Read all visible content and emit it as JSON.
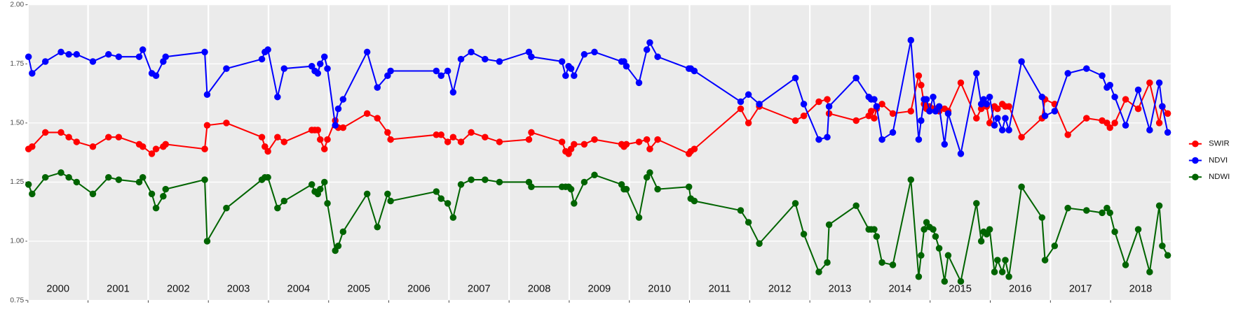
{
  "chart_data": {
    "type": "line",
    "x": [
      2000.01,
      2000.07,
      2000.29,
      2000.55,
      2000.68,
      2000.81,
      2001.08,
      2001.34,
      2001.51,
      2001.85,
      2001.91,
      2002.06,
      2002.13,
      2002.25,
      2002.29,
      2002.94,
      2002.98,
      2003.3,
      2003.89,
      2003.94,
      2003.99,
      2004.15,
      2004.26,
      2004.72,
      2004.77,
      2004.82,
      2004.86,
      2004.93,
      2004.98,
      2005.11,
      2005.16,
      2005.24,
      2005.64,
      2005.81,
      2005.98,
      2006.03,
      2006.79,
      2006.87,
      2006.98,
      2007.07,
      2007.2,
      2007.37,
      2007.6,
      2007.84,
      2008.33,
      2008.37,
      2008.88,
      2008.94,
      2008.99,
      2009.03,
      2009.08,
      2009.25,
      2009.42,
      2009.87,
      2009.91,
      2009.95,
      2010.16,
      2010.29,
      2010.34,
      2010.47,
      2010.99,
      2011.02,
      2011.08,
      2011.85,
      2011.98,
      2012.16,
      2012.76,
      2012.9,
      2013.15,
      2013.29,
      2013.32,
      2013.77,
      2013.98,
      2014.02,
      2014.07,
      2014.11,
      2014.2,
      2014.38,
      2014.68,
      2014.81,
      2014.85,
      2014.9,
      2014.94,
      2014.99,
      2015.05,
      2015.09,
      2015.15,
      2015.24,
      2015.3,
      2015.51,
      2015.77,
      2015.85,
      2015.89,
      2015.94,
      2015.99,
      2016.07,
      2016.12,
      2016.2,
      2016.25,
      2016.31,
      2016.52,
      2016.86,
      2016.91,
      2017.07,
      2017.29,
      2017.6,
      2017.86,
      2017.94,
      2017.99,
      2018.07,
      2018.25,
      2018.46,
      2018.65,
      2018.81,
      2018.86,
      2018.95
    ],
    "series": [
      {
        "name": "SWIR",
        "color": "#ff0000",
        "values": [
          1.39,
          1.4,
          1.46,
          1.46,
          1.44,
          1.42,
          1.4,
          1.44,
          1.44,
          1.41,
          1.4,
          1.37,
          1.39,
          1.4,
          1.41,
          1.39,
          1.49,
          1.5,
          1.44,
          1.4,
          1.38,
          1.44,
          1.42,
          1.47,
          1.47,
          1.47,
          1.43,
          1.39,
          1.43,
          1.51,
          1.48,
          1.48,
          1.54,
          1.52,
          1.46,
          1.43,
          1.45,
          1.45,
          1.42,
          1.44,
          1.42,
          1.46,
          1.44,
          1.42,
          1.43,
          1.46,
          1.42,
          1.38,
          1.37,
          1.39,
          1.41,
          1.41,
          1.43,
          1.41,
          1.4,
          1.41,
          1.42,
          1.43,
          1.39,
          1.43,
          1.37,
          1.38,
          1.39,
          1.56,
          1.5,
          1.57,
          1.51,
          1.53,
          1.59,
          1.6,
          1.54,
          1.51,
          1.53,
          1.55,
          1.52,
          1.56,
          1.58,
          1.54,
          1.55,
          1.7,
          1.66,
          1.58,
          1.56,
          1.57,
          1.56,
          1.56,
          1.55,
          1.56,
          1.55,
          1.67,
          1.52,
          1.56,
          1.59,
          1.57,
          1.5,
          1.57,
          1.56,
          1.58,
          1.57,
          1.57,
          1.44,
          1.52,
          1.6,
          1.58,
          1.45,
          1.52,
          1.51,
          1.5,
          1.48,
          1.5,
          1.6,
          1.56,
          1.67,
          1.5,
          1.57,
          1.54
        ]
      },
      {
        "name": "NDVI",
        "color": "#0000ff",
        "values": [
          1.78,
          1.71,
          1.76,
          1.8,
          1.79,
          1.79,
          1.76,
          1.79,
          1.78,
          1.78,
          1.81,
          1.71,
          1.7,
          1.76,
          1.78,
          1.8,
          1.62,
          1.73,
          1.77,
          1.8,
          1.81,
          1.61,
          1.73,
          1.74,
          1.72,
          1.71,
          1.75,
          1.78,
          1.73,
          1.49,
          1.56,
          1.6,
          1.8,
          1.65,
          1.7,
          1.72,
          1.72,
          1.7,
          1.72,
          1.63,
          1.77,
          1.8,
          1.77,
          1.76,
          1.8,
          1.78,
          1.76,
          1.7,
          1.74,
          1.73,
          1.7,
          1.79,
          1.8,
          1.76,
          1.76,
          1.74,
          1.67,
          1.81,
          1.84,
          1.78,
          1.73,
          1.73,
          1.72,
          1.59,
          1.62,
          1.58,
          1.69,
          1.58,
          1.43,
          1.44,
          1.57,
          1.69,
          1.61,
          1.6,
          1.6,
          1.57,
          1.43,
          1.46,
          1.85,
          1.43,
          1.51,
          1.6,
          1.6,
          1.55,
          1.61,
          1.55,
          1.57,
          1.41,
          1.54,
          1.37,
          1.71,
          1.58,
          1.6,
          1.58,
          1.61,
          1.49,
          1.52,
          1.47,
          1.52,
          1.47,
          1.76,
          1.61,
          1.53,
          1.55,
          1.71,
          1.73,
          1.7,
          1.65,
          1.66,
          1.61,
          1.49,
          1.64,
          1.47,
          1.67,
          1.57,
          1.46
        ]
      },
      {
        "name": "NDWI",
        "color": "#006400",
        "values": [
          1.24,
          1.2,
          1.27,
          1.29,
          1.27,
          1.25,
          1.2,
          1.27,
          1.26,
          1.25,
          1.27,
          1.2,
          1.14,
          1.19,
          1.22,
          1.26,
          1.0,
          1.14,
          1.26,
          1.27,
          1.27,
          1.14,
          1.17,
          1.24,
          1.21,
          1.2,
          1.22,
          1.25,
          1.16,
          0.96,
          0.98,
          1.04,
          1.2,
          1.06,
          1.2,
          1.17,
          1.21,
          1.18,
          1.16,
          1.1,
          1.24,
          1.26,
          1.26,
          1.25,
          1.25,
          1.23,
          1.23,
          1.23,
          1.23,
          1.22,
          1.16,
          1.25,
          1.28,
          1.24,
          1.22,
          1.22,
          1.1,
          1.27,
          1.29,
          1.22,
          1.23,
          1.18,
          1.17,
          1.13,
          1.08,
          0.99,
          1.16,
          1.03,
          0.87,
          0.91,
          1.07,
          1.15,
          1.05,
          1.05,
          1.05,
          1.02,
          0.91,
          0.9,
          1.26,
          0.85,
          0.94,
          1.05,
          1.08,
          1.06,
          1.05,
          1.02,
          0.97,
          0.83,
          0.94,
          0.83,
          1.16,
          1.0,
          1.04,
          1.03,
          1.05,
          0.87,
          0.92,
          0.87,
          0.92,
          0.85,
          1.23,
          1.1,
          0.92,
          0.98,
          1.14,
          1.13,
          1.12,
          1.14,
          1.12,
          1.04,
          0.9,
          1.05,
          0.87,
          1.15,
          0.98,
          0.94
        ]
      }
    ],
    "xlim": [
      2000,
      2019
    ],
    "xticks": [
      {
        "value": 2000,
        "label": "2000"
      },
      {
        "value": 2001,
        "label": "2001"
      },
      {
        "value": 2002,
        "label": "2002"
      },
      {
        "value": 2003,
        "label": "2003"
      },
      {
        "value": 2004,
        "label": "2004"
      },
      {
        "value": 2005,
        "label": "2005"
      },
      {
        "value": 2006,
        "label": "2006"
      },
      {
        "value": 2007,
        "label": "2007"
      },
      {
        "value": 2008,
        "label": "2008"
      },
      {
        "value": 2009,
        "label": "2009"
      },
      {
        "value": 2010,
        "label": "2010"
      },
      {
        "value": 2011,
        "label": "2011"
      },
      {
        "value": 2012,
        "label": "2012"
      },
      {
        "value": 2013,
        "label": "2013"
      },
      {
        "value": 2014,
        "label": "2014"
      },
      {
        "value": 2015,
        "label": "2015"
      },
      {
        "value": 2016,
        "label": "2016"
      },
      {
        "value": 2017,
        "label": "2017"
      },
      {
        "value": 2018,
        "label": "2018"
      }
    ],
    "ylim": [
      0.75,
      2.0
    ],
    "yticks": [
      {
        "value": 0.75,
        "label": "0.75"
      },
      {
        "value": 1.0,
        "label": "1.00"
      },
      {
        "value": 1.25,
        "label": "1.25"
      },
      {
        "value": 1.5,
        "label": "1.50"
      },
      {
        "value": 1.75,
        "label": "1.75"
      },
      {
        "value": 2.0,
        "label": "2.00"
      }
    ],
    "grid": true,
    "legend": "right"
  }
}
